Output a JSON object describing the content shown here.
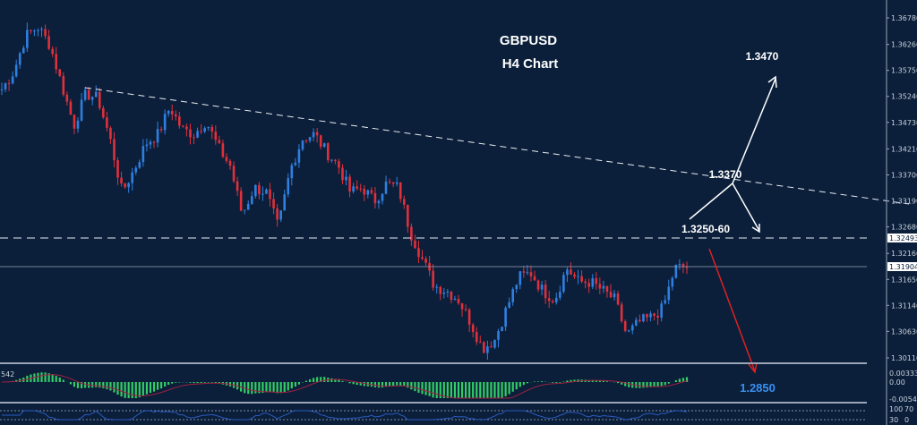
{
  "chart_data": {
    "type": "candlestick",
    "title": "GBPUSD",
    "subtitle": "H4 Chart",
    "ylim": [
      1.2995,
      1.3715
    ],
    "y_ticks": [
      "1.36780",
      "1.36260",
      "1.35750",
      "1.35240",
      "1.34730",
      "1.34210",
      "1.33700",
      "1.33190",
      "1.32680",
      "1.32160",
      "1.31650",
      "1.31140",
      "1.30630",
      "1.30110"
    ],
    "price_path": [
      1.3538,
      1.3573,
      1.3643,
      1.366,
      1.3625,
      1.3546,
      1.3467,
      1.3529,
      1.352,
      1.3441,
      1.3336,
      1.338,
      1.3432,
      1.345,
      1.3503,
      1.3459,
      1.345,
      1.3476,
      1.3424,
      1.3388,
      1.3292,
      1.3345,
      1.3336,
      1.3266,
      1.338,
      1.3441,
      1.345,
      1.3415,
      1.3388,
      1.3336,
      1.3345,
      1.3318,
      1.3353,
      1.3345,
      1.3257,
      1.3204,
      1.3152,
      1.3143,
      1.3125,
      1.3081,
      1.3029,
      1.3046,
      1.3108,
      1.3169,
      1.3178,
      1.3143,
      1.3125,
      1.3187,
      1.316,
      1.316,
      1.3143,
      1.3125,
      1.3055,
      1.3081,
      1.309,
      1.3108,
      1.3187,
      1.319
    ],
    "resistance_level": "1.32493",
    "current_price": "1.31904",
    "annotations": {
      "target_up": "1.3470",
      "trendline_break": "1.3370",
      "resistance_zone": "1.3250-60",
      "target_down": "1.2850"
    },
    "macd": {
      "label": "542",
      "ticks": [
        "0.00333",
        "0.00",
        "-0.005456"
      ]
    },
    "rsi": {
      "ticks": [
        "100",
        "70",
        "30",
        "0"
      ]
    },
    "colors": {
      "background": "#0b1f3a",
      "bull": "#2f7fe0",
      "bear": "#e0303a",
      "histogram": "#33cc66",
      "signal": "#a02040",
      "rsi": "#2a5bc0",
      "down_arrow": "#e02020",
      "target_down_text": "#3a8ff0"
    }
  }
}
